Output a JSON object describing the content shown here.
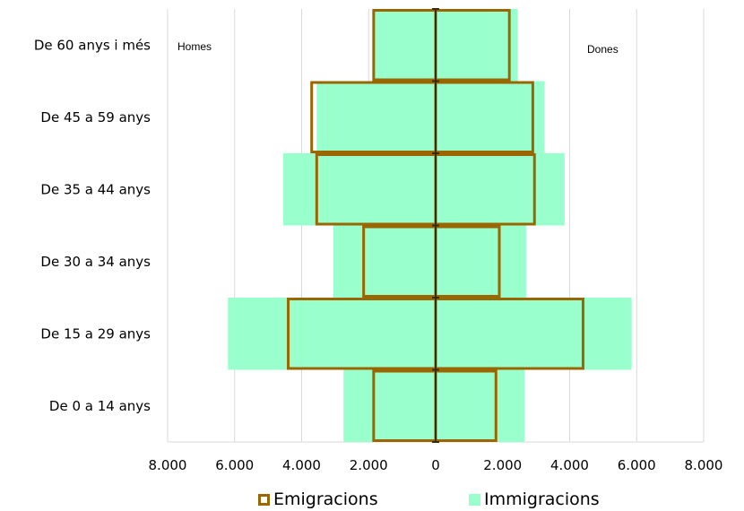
{
  "chart_data": {
    "type": "bar",
    "orientation": "horizontal",
    "subtype": "population-pyramid",
    "categories": [
      "De 0 a 14 anys",
      "De 15 a 29 anys",
      "De 30 a 34 anys",
      "De 35 a 44 anys",
      "De 45 a 59 anys",
      "De 60 anys i més"
    ],
    "series": [
      {
        "name": "Immigracions",
        "color": "#99ffcc",
        "style": "filled",
        "values_homes": [
          2750,
          6200,
          3050,
          4550,
          3550,
          1850
        ],
        "values_dones": [
          2650,
          5850,
          2700,
          3850,
          3250,
          2450
        ]
      },
      {
        "name": "Emigracions",
        "color": "#996600",
        "style": "outline",
        "values_homes": [
          1850,
          4400,
          2150,
          3550,
          3700,
          1850
        ],
        "values_dones": [
          1800,
          4400,
          1900,
          2950,
          2900,
          2200
        ]
      }
    ],
    "side_labels": {
      "left": "Homes",
      "right": "Dones"
    },
    "xlim": [
      -8000,
      8000
    ],
    "xticks": [
      -8000,
      -6000,
      -4000,
      -2000,
      0,
      2000,
      4000,
      6000,
      8000
    ],
    "xtick_labels": [
      "8.000",
      "6.000",
      "4.000",
      "2.000",
      "0",
      "2.000",
      "4.000",
      "6.000",
      "8.000"
    ],
    "grid": "vertical",
    "legend_position": "bottom"
  },
  "legend": {
    "items": [
      {
        "label": "Emigracions",
        "style": "outline",
        "color": "#996600"
      },
      {
        "label": "Immigracions",
        "style": "filled",
        "color": "#99ffcc"
      }
    ]
  }
}
